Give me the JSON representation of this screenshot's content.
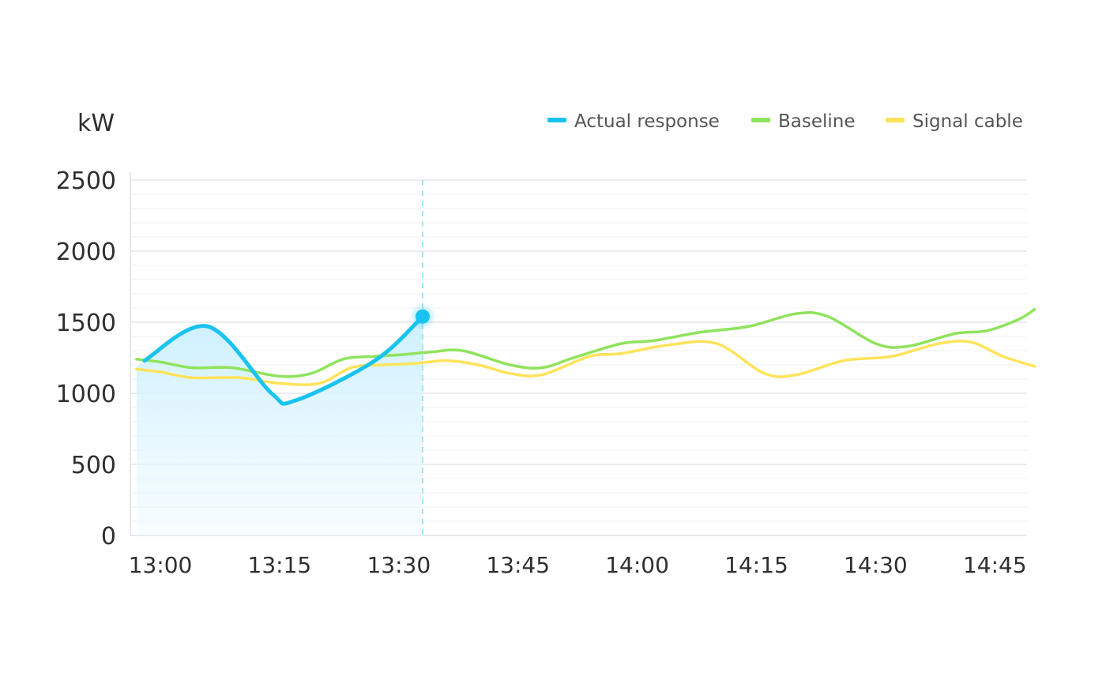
{
  "chart_data": {
    "type": "line",
    "ylabel": "kW",
    "ylim": [
      0,
      2500
    ],
    "y_ticks": [
      "0",
      "500",
      "1000",
      "1500",
      "2000",
      "2500"
    ],
    "x_ticks": [
      "13:00",
      "13:15",
      "13:30",
      "13:45",
      "14:00",
      "14:15",
      "14:30",
      "14:45"
    ],
    "minor_gridlines": true,
    "legend_position": "top-right",
    "cursor_time": "13:33",
    "series": [
      {
        "key": "actual",
        "name": "Actual response",
        "color": "#19c3f0",
        "area": true,
        "points": [
          [
            "12:58",
            1230
          ],
          [
            "13:06",
            1470
          ],
          [
            "13:14",
            1000
          ],
          [
            "13:17",
            950
          ],
          [
            "13:27",
            1230
          ],
          [
            "13:33",
            1540
          ]
        ]
      },
      {
        "key": "baseline",
        "name": "Baseline",
        "color": "#8fe35c",
        "area": false,
        "points": [
          [
            "12:57",
            1240
          ],
          [
            "13:00",
            1220
          ],
          [
            "13:04",
            1180
          ],
          [
            "13:09",
            1180
          ],
          [
            "13:15",
            1120
          ],
          [
            "13:19",
            1140
          ],
          [
            "13:23",
            1240
          ],
          [
            "13:27",
            1260
          ],
          [
            "13:30",
            1270
          ],
          [
            "13:34",
            1290
          ],
          [
            "13:38",
            1300
          ],
          [
            "13:44",
            1200
          ],
          [
            "13:48",
            1180
          ],
          [
            "13:52",
            1250
          ],
          [
            "13:58",
            1350
          ],
          [
            "14:02",
            1370
          ],
          [
            "14:08",
            1430
          ],
          [
            "14:14",
            1470
          ],
          [
            "14:20",
            1560
          ],
          [
            "14:24",
            1540
          ],
          [
            "14:30",
            1350
          ],
          [
            "14:34",
            1330
          ],
          [
            "14:40",
            1420
          ],
          [
            "14:44",
            1440
          ],
          [
            "14:48",
            1520
          ],
          [
            "14:50",
            1590
          ]
        ]
      },
      {
        "key": "signal",
        "name": "Signal cable",
        "color": "#ffe35a",
        "area": false,
        "points": [
          [
            "12:57",
            1170
          ],
          [
            "13:00",
            1150
          ],
          [
            "13:04",
            1110
          ],
          [
            "13:10",
            1110
          ],
          [
            "13:15",
            1070
          ],
          [
            "13:20",
            1070
          ],
          [
            "13:24",
            1180
          ],
          [
            "13:28",
            1200
          ],
          [
            "13:32",
            1210
          ],
          [
            "13:36",
            1230
          ],
          [
            "13:40",
            1200
          ],
          [
            "13:44",
            1140
          ],
          [
            "13:48",
            1130
          ],
          [
            "13:54",
            1260
          ],
          [
            "13:58",
            1280
          ],
          [
            "14:04",
            1340
          ],
          [
            "14:10",
            1350
          ],
          [
            "14:16",
            1140
          ],
          [
            "14:20",
            1130
          ],
          [
            "14:26",
            1230
          ],
          [
            "14:32",
            1260
          ],
          [
            "14:38",
            1350
          ],
          [
            "14:42",
            1360
          ],
          [
            "14:46",
            1260
          ],
          [
            "14:50",
            1190
          ]
        ]
      }
    ]
  }
}
